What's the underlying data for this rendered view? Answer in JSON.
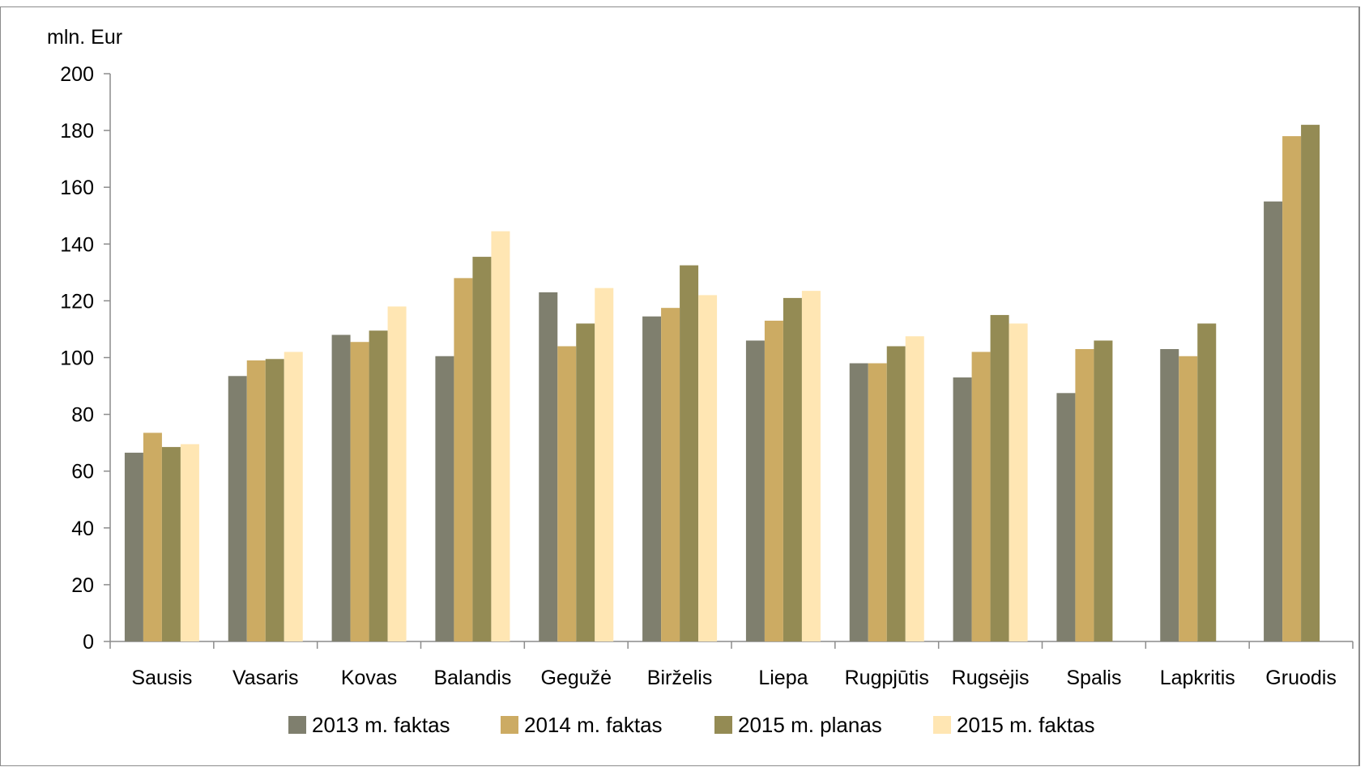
{
  "chart_data": {
    "type": "bar",
    "title": "",
    "ylabel": "mln. Eur",
    "xlabel": "",
    "ylim": [
      0,
      200
    ],
    "yticks": [
      0,
      20,
      40,
      60,
      80,
      100,
      120,
      140,
      160,
      180,
      200
    ],
    "grid": false,
    "legend_position": "bottom",
    "categories": [
      "Sausis",
      "Vasaris",
      "Kovas",
      "Balandis",
      "Gegužė",
      "Birželis",
      "Liepa",
      "Rugpjūtis",
      "Rugsėjis",
      "Spalis",
      "Lapkritis",
      "Gruodis"
    ],
    "series": [
      {
        "name": "2013 m. faktas",
        "color": "#7f7f6e",
        "values": [
          66.5,
          93.5,
          108,
          100.5,
          123,
          114.5,
          106,
          98,
          93,
          87.5,
          103,
          155
        ]
      },
      {
        "name": "2014 m. faktas",
        "color": "#ccab63",
        "values": [
          73.5,
          99,
          105.5,
          128,
          104,
          117.5,
          113,
          98,
          102,
          103,
          100.5,
          178
        ]
      },
      {
        "name": "2015 m. planas",
        "color": "#948b54",
        "values": [
          68.5,
          99.5,
          109.5,
          135.5,
          112,
          132.5,
          121,
          104,
          115,
          106,
          112,
          182
        ]
      },
      {
        "name": "2015 m. faktas",
        "color": "#ffe6b3",
        "values": [
          69.5,
          102,
          118,
          144.5,
          124.5,
          122,
          123.5,
          107.5,
          112,
          null,
          null,
          null
        ]
      }
    ]
  }
}
